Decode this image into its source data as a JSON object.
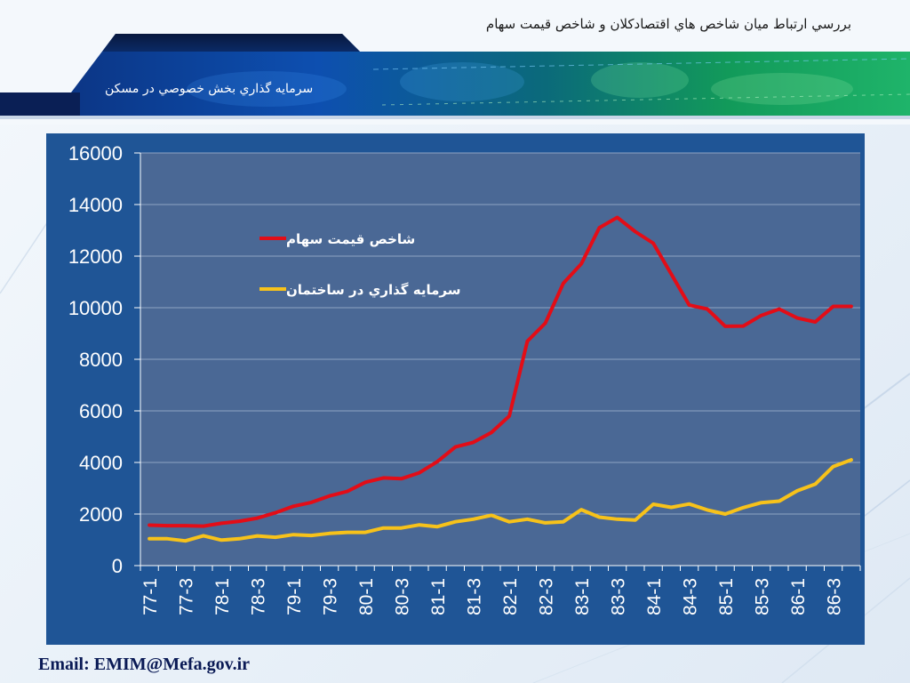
{
  "header": {
    "title": "بررسي ارتباط ميان شاخص هاي اقتصادكلان و شاخص قيمت سهام",
    "subtitle": "سرمايه گذاري بخش خصوصي در مسكن"
  },
  "footer": {
    "email": "Email: EMIM@Mefa.gov.ir"
  },
  "colors": {
    "panel": "#1f5596",
    "plot_area": "#4a6895",
    "series_stock": "#e30d17",
    "series_housing": "#f7c21a"
  },
  "chart_data": {
    "type": "line",
    "title": "",
    "xlabel": "",
    "ylabel": "",
    "ylim": [
      0,
      16000
    ],
    "yticks": [
      0,
      2000,
      4000,
      6000,
      8000,
      10000,
      12000,
      14000,
      16000
    ],
    "grid": true,
    "legend_position": "top-left",
    "x": [
      "77-1",
      "77-2",
      "77-3",
      "77-4",
      "78-1",
      "78-2",
      "78-3",
      "78-4",
      "79-1",
      "79-2",
      "79-3",
      "79-4",
      "80-1",
      "80-2",
      "80-3",
      "80-4",
      "81-1",
      "81-2",
      "81-3",
      "81-4",
      "82-1",
      "82-2",
      "82-3",
      "82-4",
      "83-1",
      "83-2",
      "83-3",
      "83-4",
      "84-1",
      "84-2",
      "84-3",
      "84-4",
      "85-1",
      "85-2",
      "85-3",
      "85-4",
      "86-1",
      "86-2",
      "86-3",
      "86-4"
    ],
    "x_tick_labels": [
      "77-1",
      "77-3",
      "78-1",
      "78-3",
      "79-1",
      "79-3",
      "80-1",
      "80-3",
      "81-1",
      "81-3",
      "82-1",
      "82-3",
      "83-1",
      "83-3",
      "84-1",
      "84-3",
      "85-1",
      "85-3",
      "86-1",
      "86-3"
    ],
    "series": [
      {
        "name": "شاخص قيمت سهام",
        "color": "#e30d17",
        "values": [
          1570,
          1550,
          1550,
          1530,
          1640,
          1720,
          1840,
          2050,
          2300,
          2450,
          2700,
          2880,
          3230,
          3400,
          3370,
          3600,
          4030,
          4600,
          4780,
          5160,
          5800,
          8700,
          9400,
          10950,
          11700,
          13100,
          13500,
          12950,
          12500,
          11300,
          10100,
          9950,
          9280,
          9290,
          9700,
          9950,
          9600,
          9450,
          10050,
          10050
        ]
      },
      {
        "name": "سرمايه گذاري در ساختمان",
        "color": "#f7c21a",
        "values": [
          1040,
          1040,
          960,
          1160,
          990,
          1040,
          1150,
          1100,
          1200,
          1170,
          1250,
          1290,
          1290,
          1460,
          1460,
          1580,
          1510,
          1700,
          1800,
          1950,
          1700,
          1800,
          1660,
          1700,
          2170,
          1880,
          1800,
          1770,
          2380,
          2260,
          2390,
          2160,
          2000,
          2250,
          2440,
          2500,
          2900,
          3160,
          3840,
          4100
        ]
      }
    ]
  }
}
